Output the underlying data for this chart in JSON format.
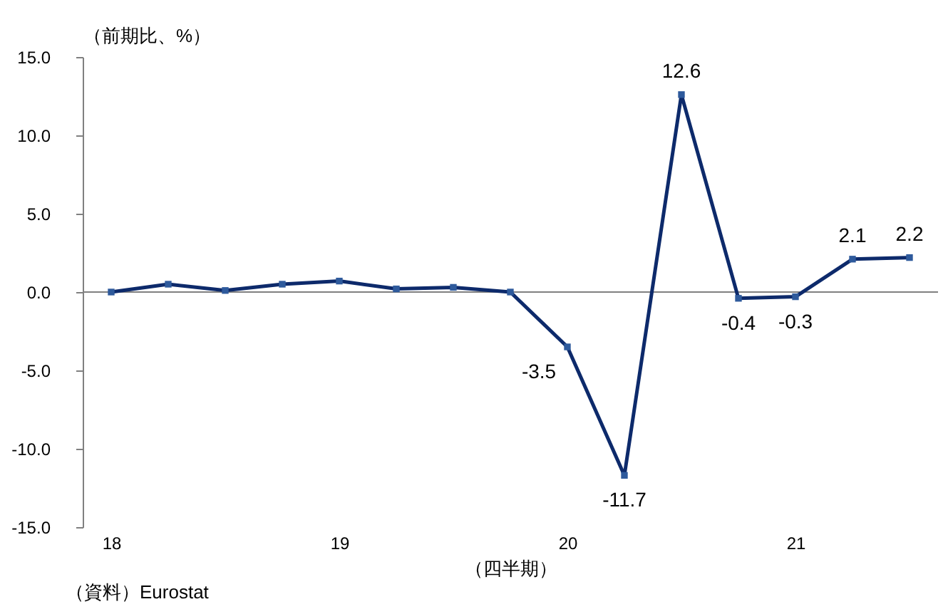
{
  "chart_data": {
    "type": "line",
    "ylabel": "（前期比、%）",
    "xlabel": "（四半期）",
    "annotations": [
      "（資料）Eurostat"
    ],
    "categories": [
      "18",
      null,
      null,
      null,
      "19",
      null,
      null,
      null,
      "20",
      null,
      null,
      null,
      "21",
      null,
      null
    ],
    "series": [
      {
        "color": "#0d2a6b",
        "values": [
          0.0,
          0.5,
          0.1,
          0.5,
          0.7,
          0.2,
          0.3,
          0.0,
          -3.5,
          -11.7,
          12.6,
          -0.4,
          -0.3,
          2.1,
          2.2
        ],
        "value_labels": [
          null,
          null,
          null,
          null,
          null,
          null,
          null,
          null,
          "-3.5",
          "-11.7",
          "12.6",
          "-0.4",
          "-0.3",
          "2.1",
          "2.2"
        ]
      }
    ],
    "ylim": [
      -15,
      15
    ],
    "yticks": [
      {
        "value": -15,
        "label": "-15.0"
      },
      {
        "value": -10,
        "label": "-10.0"
      },
      {
        "value": -5,
        "label": "-5.0"
      },
      {
        "value": 0,
        "label": "0.0"
      },
      {
        "value": 5,
        "label": "5.0"
      },
      {
        "value": 10,
        "label": "10.0"
      },
      {
        "value": 15,
        "label": "15.0"
      }
    ],
    "marker": "square",
    "line_style": "solid"
  }
}
